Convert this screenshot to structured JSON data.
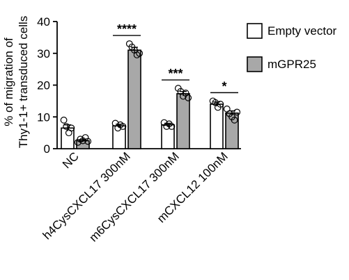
{
  "chart_data": {
    "type": "bar",
    "ylabel_line1": "% of migration of",
    "ylabel_line2": "Thy1-1+ transduced cells",
    "ylim": [
      0,
      40
    ],
    "yticks": [
      0,
      10,
      20,
      30,
      40
    ],
    "categories": [
      "NC",
      "h4CysCXCL17 300nM",
      "m6CysCXCL17 300nM",
      "mCXCL12 100nM"
    ],
    "series": [
      {
        "name": "Empty vector",
        "color": "#ffffff",
        "values": [
          6.5,
          7.2,
          7.5,
          14.0
        ],
        "errors": [
          1.0,
          0.5,
          0.5,
          0.7
        ],
        "points": [
          [
            9,
            7,
            5,
            6.5
          ],
          [
            8,
            6.5,
            7.5,
            7
          ],
          [
            8.2,
            7,
            7.8,
            7
          ],
          [
            15,
            14.5,
            13,
            14
          ]
        ]
      },
      {
        "name": "mGPR25",
        "color": "#a8a8a8",
        "values": [
          2.5,
          31.0,
          17.3,
          11.2
        ],
        "errors": [
          0.4,
          0.9,
          0.7,
          0.7
        ],
        "points": [
          [
            2,
            3,
            2.5,
            3.5,
            2.3
          ],
          [
            33,
            32,
            31,
            29.5,
            30
          ],
          [
            19,
            18,
            16.5,
            17.5,
            16
          ],
          [
            12.5,
            11,
            10,
            9,
            11.5
          ]
        ]
      }
    ],
    "significance": [
      "****",
      "***",
      "*"
    ],
    "significance_groups": [
      1,
      2,
      3
    ],
    "grid": false,
    "legend_position": "right"
  }
}
